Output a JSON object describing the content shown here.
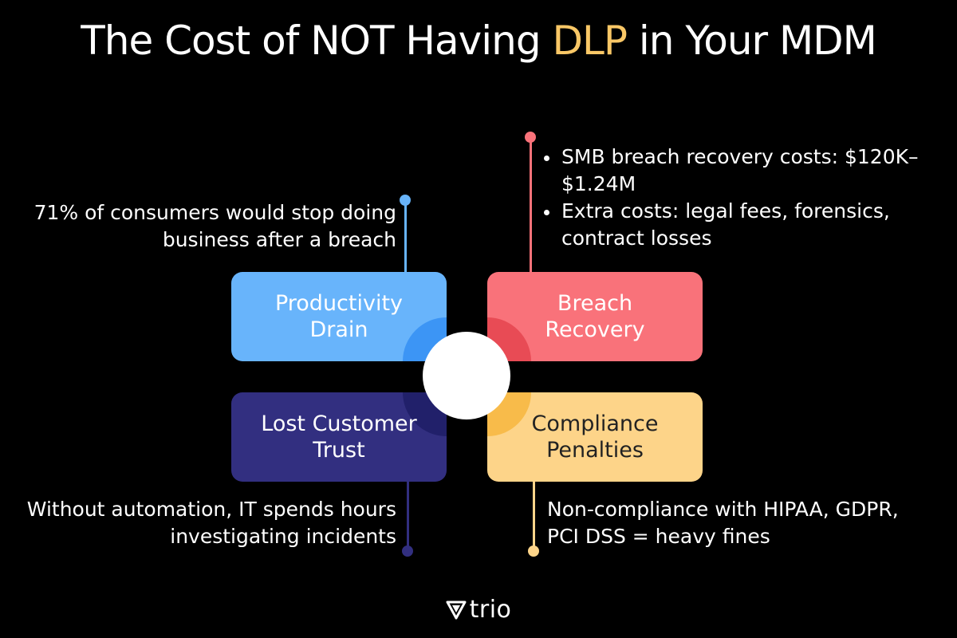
{
  "title": {
    "before": "The Cost of NOT Having ",
    "highlight": "DLP",
    "after": " in Your MDM",
    "highlight_color": "#f9c766"
  },
  "boxes": {
    "productivity_drain": {
      "label": "Productivity Drain",
      "color": "#68b4fb"
    },
    "breach_recovery": {
      "label": "Breach Recovery",
      "color": "#f9727a"
    },
    "lost_customer_trust": {
      "label": "Lost Customer Trust",
      "color": "#322f80"
    },
    "compliance_penalties": {
      "label": "Compliance Penalties",
      "color": "#fdd489"
    }
  },
  "notes": {
    "top_left": "71% of consumers would stop doing business after a breach",
    "top_right": [
      "SMB breach recovery costs: $120K–$1.24M",
      "Extra costs: legal fees, forensics, contract losses"
    ],
    "bottom_left": "Without automation, IT spends hours investigating incidents",
    "bottom_right": "Non-compliance with HIPAA, GDPR, PCI DSS = heavy fines"
  },
  "logo": {
    "text": "trio",
    "icon": "trio-shield-icon"
  }
}
